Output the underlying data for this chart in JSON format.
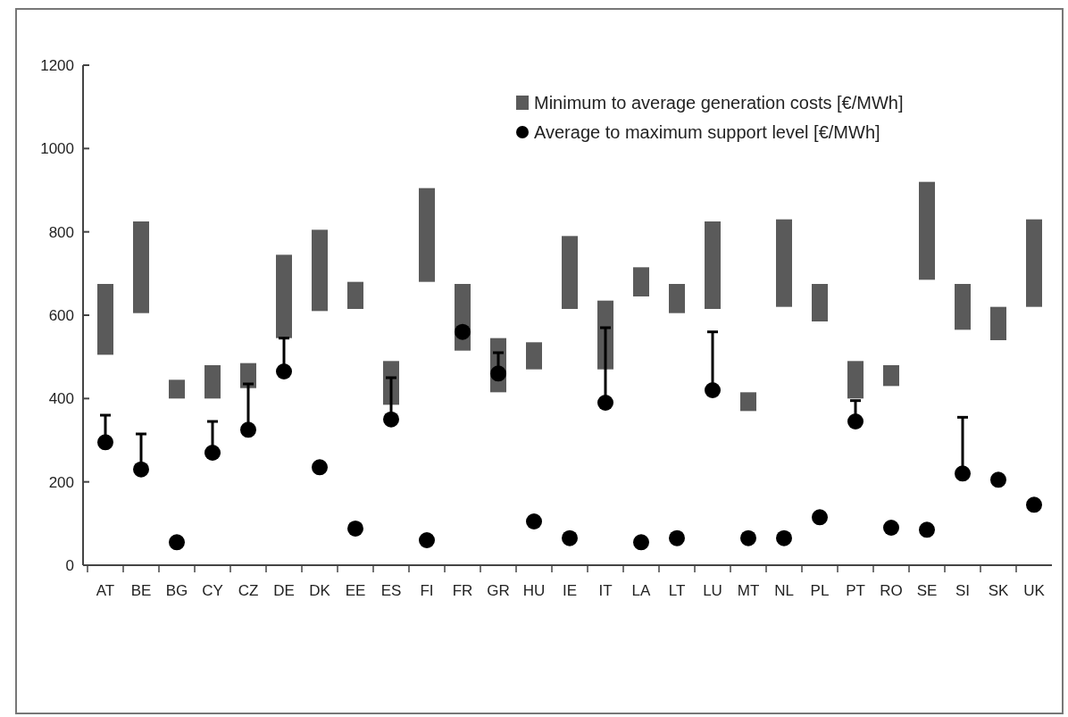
{
  "chart_data": {
    "type": "bar",
    "categories": [
      "AT",
      "BE",
      "BG",
      "CY",
      "CZ",
      "DE",
      "DK",
      "EE",
      "ES",
      "FI",
      "FR",
      "GR",
      "HU",
      "IE",
      "IT",
      "LA",
      "LT",
      "LU",
      "MT",
      "NL",
      "PL",
      "PT",
      "RO",
      "SE",
      "SI",
      "SK",
      "UK"
    ],
    "series": [
      {
        "name": "Minimum to average generation costs [€/MWh]",
        "color": "#5a5a5a",
        "base": [
          505,
          605,
          400,
          400,
          425,
          545,
          610,
          615,
          385,
          680,
          515,
          415,
          470,
          615,
          470,
          645,
          605,
          615,
          370,
          620,
          585,
          400,
          430,
          685,
          565,
          540,
          620
        ],
        "values": [
          170,
          220,
          45,
          80,
          60,
          200,
          195,
          65,
          105,
          225,
          160,
          130,
          65,
          175,
          165,
          70,
          70,
          210,
          45,
          210,
          90,
          90,
          50,
          235,
          110,
          80,
          210
        ]
      },
      {
        "type": "scatter",
        "name": "Average to maximum support level [€/MWh]",
        "color": "#000000",
        "marker": "circle",
        "values": [
          295,
          230,
          55,
          270,
          325,
          465,
          235,
          88,
          350,
          60,
          560,
          460,
          105,
          65,
          390,
          55,
          65,
          420,
          65,
          65,
          115,
          345,
          90,
          85,
          220,
          205,
          145
        ],
        "errors": [
          [
            295,
            360
          ],
          [
            230,
            315
          ],
          null,
          [
            270,
            345
          ],
          [
            325,
            435
          ],
          [
            465,
            545
          ],
          null,
          null,
          [
            350,
            450
          ],
          null,
          null,
          [
            460,
            510
          ],
          null,
          null,
          [
            390,
            570
          ],
          null,
          null,
          [
            420,
            560
          ],
          null,
          null,
          null,
          [
            345,
            395
          ],
          null,
          null,
          [
            220,
            355
          ],
          null,
          null
        ]
      }
    ],
    "ylim": [
      0,
      1200
    ],
    "yticks": [
      0,
      200,
      400,
      600,
      800,
      1000,
      1200
    ],
    "grid": false,
    "legend": "top right"
  }
}
